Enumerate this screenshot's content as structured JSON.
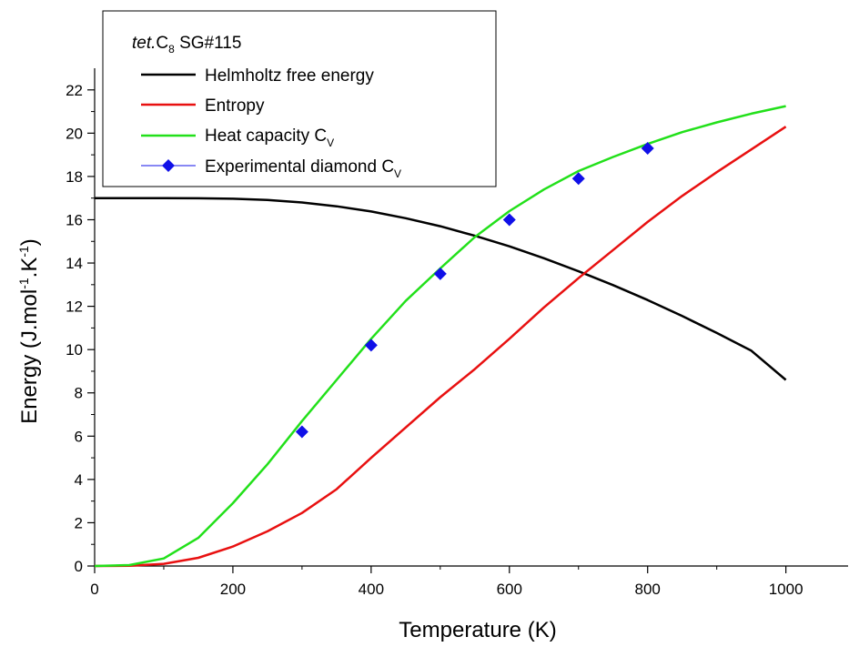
{
  "chart_data": {
    "type": "line",
    "legend_title": {
      "italic": "tet.",
      "main": "C",
      "sub": "8",
      "rest": " SG#115"
    },
    "xlabel": "Temperature (K)",
    "ylabel": {
      "main": "Energy (J.mol",
      "sup1": "-1",
      "mid": ".K",
      "sup2": "-1",
      "end": ")"
    },
    "xlim": [
      0,
      1090
    ],
    "ylim": [
      0,
      23
    ],
    "x_ticks": [
      0,
      200,
      400,
      600,
      800,
      1000
    ],
    "x_tick_labels": [
      "0",
      "200",
      "400",
      "600",
      "800",
      "1000"
    ],
    "y_ticks": [
      0,
      2,
      4,
      6,
      8,
      10,
      12,
      14,
      16,
      18,
      20,
      22
    ],
    "y_tick_labels": [
      "0",
      "2",
      "4",
      "6",
      "8",
      "10",
      "12",
      "14",
      "16",
      "18",
      "20",
      "22"
    ],
    "grid": false,
    "legend_position": "top-left",
    "series": [
      {
        "name": "Helmholtz free energy",
        "color": "#000000",
        "style": "line",
        "x": [
          0,
          50,
          100,
          150,
          200,
          250,
          300,
          350,
          400,
          450,
          500,
          550,
          600,
          650,
          700,
          750,
          800,
          850,
          900,
          950,
          1000
        ],
        "y": [
          17.0,
          17.0,
          17.0,
          16.99,
          16.97,
          16.91,
          16.8,
          16.62,
          16.38,
          16.07,
          15.7,
          15.26,
          14.77,
          14.22,
          13.62,
          12.98,
          12.29,
          11.55,
          10.77,
          9.95,
          8.6
        ]
      },
      {
        "name": "Entropy",
        "color": "#e81010",
        "style": "line",
        "x": [
          0,
          50,
          100,
          150,
          200,
          250,
          300,
          350,
          400,
          450,
          500,
          550,
          600,
          650,
          700,
          750,
          800,
          850,
          900,
          950,
          1000
        ],
        "y": [
          0.0,
          0.01,
          0.1,
          0.38,
          0.9,
          1.6,
          2.45,
          3.55,
          5.0,
          6.4,
          7.8,
          9.1,
          10.5,
          11.95,
          13.3,
          14.6,
          15.9,
          17.1,
          18.2,
          19.25,
          20.3
        ]
      },
      {
        "name": "Heat capacity C_V",
        "label_main": "Heat capacity C",
        "label_sub": "V",
        "color": "#22e01a",
        "style": "line",
        "x": [
          0,
          50,
          100,
          150,
          200,
          250,
          300,
          350,
          400,
          450,
          500,
          550,
          600,
          650,
          700,
          750,
          800,
          850,
          900,
          950,
          1000
        ],
        "y": [
          0.0,
          0.04,
          0.35,
          1.3,
          2.9,
          4.7,
          6.7,
          8.6,
          10.5,
          12.25,
          13.75,
          15.2,
          16.4,
          17.4,
          18.25,
          18.9,
          19.5,
          20.05,
          20.5,
          20.9,
          21.25
        ]
      },
      {
        "name": "Experimental diamond C_V",
        "label_main": "Experimental diamond C",
        "label_sub": "V",
        "color": "#1010e8",
        "style": "markers",
        "marker": "diamond",
        "x": [
          300,
          400,
          500,
          600,
          700,
          800
        ],
        "y": [
          6.2,
          10.2,
          13.5,
          16.0,
          17.9,
          19.3
        ]
      }
    ]
  }
}
